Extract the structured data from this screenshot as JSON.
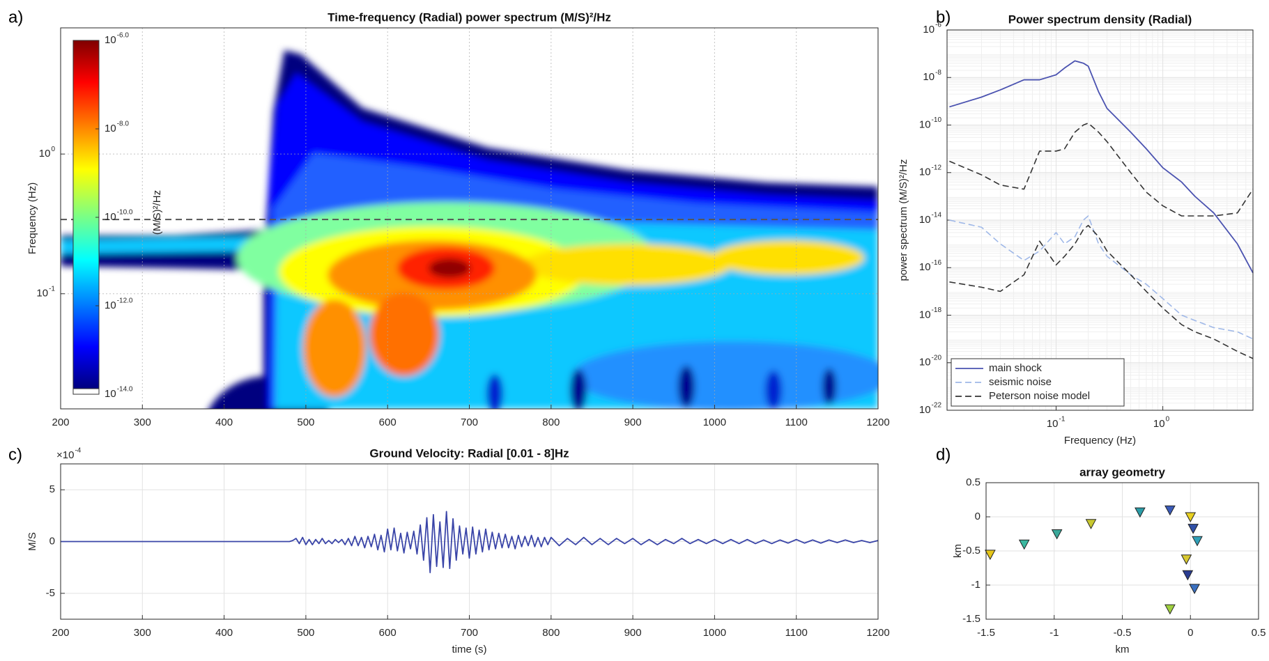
{
  "chart_data": [
    {
      "type": "heatmap",
      "panel_label": "a)",
      "title": "Time-frequency (Radial) power spectrum (M/S)²/Hz",
      "ylabel": "Frequency (Hz)",
      "xlim": [
        200,
        1200
      ],
      "xticks": [
        200,
        300,
        400,
        500,
        600,
        700,
        800,
        900,
        1000,
        1100,
        1200
      ],
      "ylim": [
        0.015,
        8
      ],
      "yscale": "log",
      "yticks": [
        {
          "value": 0.1,
          "label": "10",
          "exponent": "-1"
        },
        {
          "value": 1,
          "label": "10",
          "exponent": "0"
        }
      ],
      "grid": true,
      "reference_line": 0.34,
      "colorbar": {
        "label": "(M/S)²/Hz",
        "lim": [
          1e-14,
          1e-06
        ],
        "scale": "log",
        "ticks": [
          {
            "value": 1e-06,
            "label": "10",
            "exponent": "-6.0"
          },
          {
            "value": 1e-08,
            "label": "10",
            "exponent": "-8.0"
          },
          {
            "value": 1e-10,
            "label": "10",
            "exponent": "-10.0"
          },
          {
            "value": 1e-12,
            "label": "10",
            "exponent": "-12.0"
          },
          {
            "value": 1e-14,
            "label": "10",
            "exponent": "-14.0"
          }
        ]
      }
    },
    {
      "type": "line",
      "panel_label": "b)",
      "title": "Power spectrum density (Radial)",
      "xlabel": "Frequency (Hz)",
      "ylabel": "power spectrum (M/S)²/Hz",
      "xscale": "log",
      "yscale": "log",
      "xlim": [
        0.0095,
        7
      ],
      "xticks": [
        {
          "value": 0.1,
          "label": "10",
          "exponent": "-1"
        },
        {
          "value": 1,
          "label": "10",
          "exponent": "0"
        }
      ],
      "ylim": [
        1e-22,
        1e-06
      ],
      "yticks": [
        {
          "value": 1e-06,
          "label": "10",
          "exponent": "-6"
        },
        {
          "value": 1e-08,
          "label": "10",
          "exponent": "-8"
        },
        {
          "value": 1e-10,
          "label": "10",
          "exponent": "-10"
        },
        {
          "value": 1e-12,
          "label": "10",
          "exponent": "-12"
        },
        {
          "value": 1e-14,
          "label": "10",
          "exponent": "-14"
        },
        {
          "value": 1e-16,
          "label": "10",
          "exponent": "-16"
        },
        {
          "value": 1e-18,
          "label": "10",
          "exponent": "-18"
        },
        {
          "value": 1e-20,
          "label": "10",
          "exponent": "-20"
        },
        {
          "value": 1e-22,
          "label": "10",
          "exponent": "-22"
        }
      ],
      "grid": true,
      "minor_grid": true,
      "legend": "lower left",
      "x": [
        0.01,
        0.02,
        0.03,
        0.05,
        0.07,
        0.1,
        0.12,
        0.15,
        0.18,
        0.2,
        0.25,
        0.3,
        0.5,
        0.7,
        1,
        1.5,
        2,
        3,
        5,
        7
      ],
      "series": [
        {
          "name": "main shock",
          "color": "#4a52b0",
          "values": [
            5.8e-10,
            1.5e-09,
            3e-09,
            8e-09,
            8e-09,
            1.3e-08,
            2.5e-08,
            5e-08,
            4e-08,
            3e-08,
            2.5e-09,
            5e-10,
            5e-11,
            1e-11,
            1.6e-12,
            4e-13,
            1e-13,
            2e-14,
            1e-15,
            6e-17
          ]
        },
        {
          "name": "seismic noise",
          "color": "#9fb8e8",
          "dash": true,
          "values": [
            1e-14,
            5e-15,
            1e-15,
            2e-16,
            5e-16,
            3e-15,
            1e-15,
            2e-15,
            1e-14,
            1.5e-14,
            1e-15,
            3e-16,
            5e-17,
            2e-17,
            5e-18,
            1e-18,
            6e-19,
            3e-19,
            2e-19,
            1e-19
          ]
        },
        {
          "name": "Peterson noise model",
          "color": "#333333",
          "dash": true,
          "values": [
            3e-12,
            8e-13,
            3e-13,
            2e-13,
            8e-12,
            8e-12,
            1e-11,
            5e-11,
            1e-10,
            1.2e-10,
            5e-11,
            2e-11,
            1e-12,
            1.5e-13,
            4e-14,
            1.5e-14,
            1.5e-14,
            1.5e-14,
            2e-14,
            2e-13
          ],
          "lower_values": [
            2.5e-17,
            1.5e-17,
            1e-17,
            5e-17,
            1.3e-15,
            1.3e-16,
            3e-16,
            1e-15,
            4e-15,
            6e-15,
            2e-15,
            5e-16,
            5e-17,
            1e-17,
            2e-18,
            4e-19,
            2e-19,
            1e-19,
            3e-20,
            1.5e-20
          ]
        }
      ]
    },
    {
      "type": "line",
      "panel_label": "c)",
      "title": "Ground Velocity: Radial  [0.01 - 8]Hz",
      "xlabel": "time (s)",
      "ylabel": "M/S",
      "y_multiplier": {
        "label": "×10",
        "exponent": "-4"
      },
      "xlim": [
        200,
        1200
      ],
      "xticks": [
        200,
        300,
        400,
        500,
        600,
        700,
        800,
        900,
        1000,
        1100,
        1200
      ],
      "ylim": [
        -7.5,
        7.5
      ],
      "yticks": [
        -5,
        0,
        5
      ],
      "grid": true,
      "color": "#3a45a8",
      "x": [
        200,
        480,
        484,
        488,
        492,
        496,
        500,
        504,
        508,
        512,
        516,
        520,
        524,
        528,
        532,
        536,
        540,
        544,
        548,
        552,
        556,
        560,
        564,
        568,
        572,
        576,
        580,
        584,
        588,
        592,
        596,
        600,
        604,
        608,
        612,
        616,
        620,
        624,
        628,
        632,
        636,
        640,
        644,
        648,
        652,
        656,
        660,
        664,
        668,
        672,
        676,
        680,
        684,
        688,
        692,
        696,
        700,
        704,
        708,
        712,
        716,
        720,
        724,
        728,
        732,
        736,
        740,
        744,
        748,
        752,
        756,
        760,
        764,
        768,
        772,
        776,
        780,
        784,
        788,
        792,
        796,
        800,
        810,
        820,
        830,
        840,
        850,
        860,
        870,
        880,
        890,
        900,
        910,
        920,
        930,
        940,
        950,
        960,
        970,
        980,
        990,
        1000,
        1010,
        1020,
        1030,
        1040,
        1050,
        1060,
        1070,
        1080,
        1090,
        1100,
        1110,
        1120,
        1130,
        1140,
        1150,
        1160,
        1170,
        1180,
        1190,
        1200
      ],
      "values": [
        0,
        0,
        0.1,
        0.3,
        -0.2,
        0.4,
        -0.3,
        0.2,
        -0.3,
        0.2,
        -0.2,
        0.3,
        -0.2,
        0.1,
        -0.2,
        0.2,
        -0.1,
        0.2,
        -0.3,
        0.3,
        -0.4,
        0.5,
        -0.4,
        0.4,
        -0.6,
        0.5,
        -0.5,
        0.7,
        -0.8,
        0.6,
        -1.0,
        1.2,
        -0.8,
        1.3,
        -0.9,
        0.8,
        -1.1,
        0.9,
        -0.7,
        1.0,
        -1.2,
        1.6,
        -1.8,
        2.3,
        -3.0,
        2.6,
        -2.4,
        1.9,
        -2.5,
        2.9,
        -2.6,
        2.2,
        -1.8,
        1.5,
        -1.2,
        1.3,
        -1.6,
        1.4,
        -1.2,
        1.1,
        -1.0,
        1.2,
        -0.8,
        0.9,
        -0.7,
        0.8,
        -0.6,
        0.7,
        -0.6,
        0.5,
        -0.7,
        0.6,
        -0.5,
        0.5,
        -0.4,
        0.6,
        -0.5,
        0.4,
        -0.5,
        0.4,
        -0.3,
        0.4,
        -0.4,
        0.3,
        -0.3,
        0.4,
        -0.3,
        0.3,
        -0.3,
        0.3,
        -0.2,
        0.3,
        -0.3,
        0.2,
        -0.3,
        0.2,
        -0.2,
        0.3,
        -0.2,
        0.2,
        -0.2,
        0.2,
        -0.2,
        0.2,
        -0.2,
        0.2,
        -0.2,
        0.15,
        -0.2,
        0.15,
        -0.15,
        0.2,
        -0.15,
        0.15,
        -0.15,
        0.15,
        -0.1,
        0.15,
        -0.1,
        0.1,
        -0.1,
        0.1
      ]
    },
    {
      "type": "scatter",
      "panel_label": "d)",
      "title": "array geometry",
      "xlabel": "km",
      "ylabel": "km",
      "xlim": [
        -1.5,
        0.5
      ],
      "xticks": [
        -1.5,
        -1,
        -0.5,
        0,
        0.5
      ],
      "ylim": [
        -1.5,
        0.5
      ],
      "yticks": [
        -1.5,
        -1,
        -0.5,
        0,
        0.5
      ],
      "grid": true,
      "x": [
        -1.47,
        -1.22,
        -0.98,
        -0.73,
        -0.37,
        -0.15,
        0.0,
        0.02,
        0.05,
        -0.03,
        -0.02,
        0.03,
        -0.15
      ],
      "values": [
        -0.55,
        -0.4,
        -0.25,
        -0.1,
        0.07,
        0.1,
        0.0,
        -0.17,
        -0.35,
        -0.62,
        -0.85,
        -1.05,
        -1.35
      ],
      "colors": [
        "#e6c619",
        "#3bb8a0",
        "#3aa89a",
        "#c8c830",
        "#2a9da8",
        "#3a5ab8",
        "#e8d020",
        "#3050a8",
        "#30a0b8",
        "#d8c830",
        "#2a3c90",
        "#3a70c0",
        "#a0d040"
      ]
    }
  ]
}
